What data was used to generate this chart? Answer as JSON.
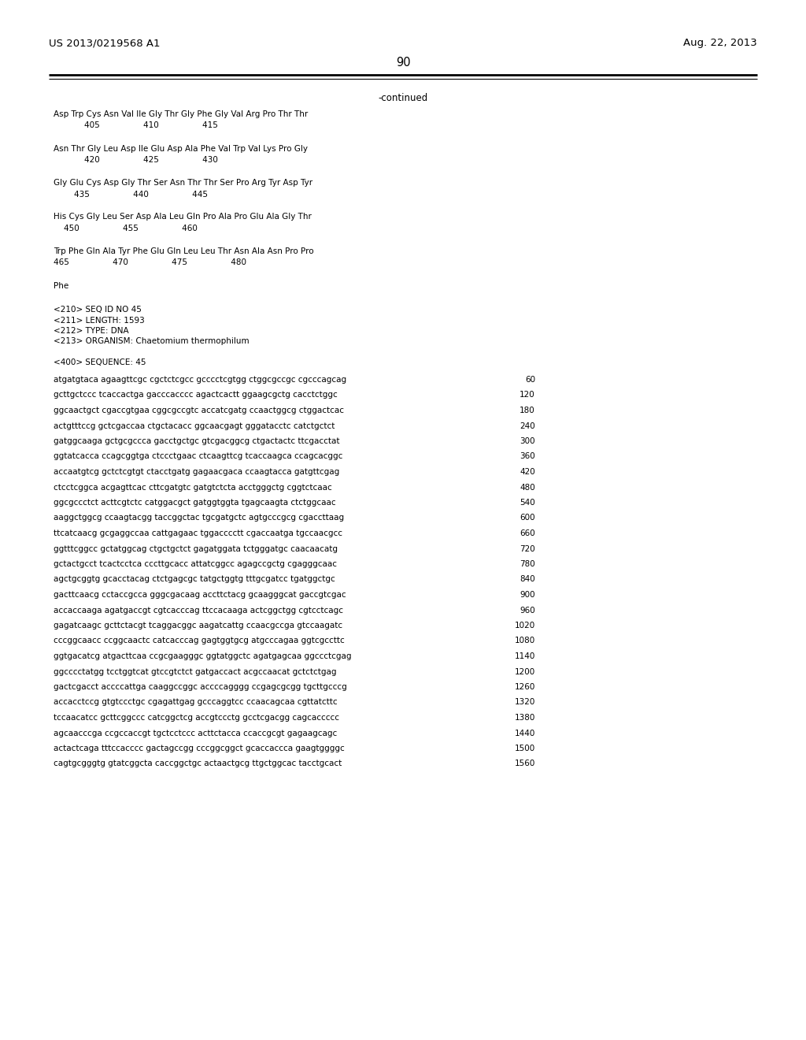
{
  "header_left": "US 2013/0219568 A1",
  "header_right": "Aug. 22, 2013",
  "page_number": "90",
  "continued_label": "-continued",
  "background_color": "#ffffff",
  "text_color": "#000000",
  "font_size_header": 9.5,
  "font_size_page": 10.5,
  "font_size_continued": 8.5,
  "font_size_mono": 7.5,
  "amino_acid_lines": [
    "Asp Trp Cys Asn Val Ile Gly Thr Gly Phe Gly Val Arg Pro Thr Thr",
    "            405                 410                 415",
    "",
    "Asn Thr Gly Leu Asp Ile Glu Asp Ala Phe Val Trp Val Lys Pro Gly",
    "            420                 425                 430",
    "",
    "Gly Glu Cys Asp Gly Thr Ser Asn Thr Thr Ser Pro Arg Tyr Asp Tyr",
    "        435                 440                 445",
    "",
    "His Cys Gly Leu Ser Asp Ala Leu Gln Pro Ala Pro Glu Ala Gly Thr",
    "    450                 455                 460",
    "",
    "Trp Phe Gln Ala Tyr Phe Glu Gln Leu Leu Thr Asn Ala Asn Pro Pro",
    "465                 470                 475                 480",
    "",
    "Phe"
  ],
  "metadata_lines": [
    "<210> SEQ ID NO 45",
    "<211> LENGTH: 1593",
    "<212> TYPE: DNA",
    "<213> ORGANISM: Chaetomium thermophilum"
  ],
  "sequence_header": "<400> SEQUENCE: 45",
  "dna_lines": [
    [
      "atgatgtaca agaagttcgc cgctctcgcc gcccctcgtgg ctggcgccgc cgcccagcag",
      "60"
    ],
    [
      "gcttgctccc tcaccactga gacccacccc agactcactt ggaagcgctg cacctctggc",
      "120"
    ],
    [
      "ggcaactgct cgaccgtgaa cggcgccgtc accatcgatg ccaactggcg ctggactcac",
      "180"
    ],
    [
      "actgtttccg gctcgaccaa ctgctacacc ggcaacgagt gggatacctc catctgctct",
      "240"
    ],
    [
      "gatggcaaga gctgcgccca gacctgctgc gtcgacggcg ctgactactc ttcgacctat",
      "300"
    ],
    [
      "ggtatcacca ccagcggtga ctccctgaac ctcaagttcg tcaccaagca ccagcacggc",
      "360"
    ],
    [
      "accaatgtcg gctctcgtgt ctacctgatg gagaacgaca ccaagtacca gatgttcgag",
      "420"
    ],
    [
      "ctcctcggca acgagttcac cttcgatgtc gatgtctcta acctgggctg cggtctcaac",
      "480"
    ],
    [
      "ggcgccctct acttcgtctc catggacgct gatggtggta tgagcaagta ctctggcaac",
      "540"
    ],
    [
      "aaggctggcg ccaagtacgg taccggctac tgcgatgctc agtgcccgcg cgaccttaag",
      "600"
    ],
    [
      "ttcatcaacg gcgaggccaa cattgagaac tggacccctt cgaccaatga tgccaacgcc",
      "660"
    ],
    [
      "ggtttcggcc gctatggcag ctgctgctct gagatggata tctgggatgc caacaacatg",
      "720"
    ],
    [
      "gctactgcct tcactcctca cccttgcacc attatcggcc agagccgctg cgagggcaac",
      "780"
    ],
    [
      "agctgcggtg gcacctacag ctctgagcgc tatgctggtg tttgcgatcc tgatggctgc",
      "840"
    ],
    [
      "gacttcaacg cctaccgcca gggcgacaag accttctacg gcaagggcat gaccgtcgac",
      "900"
    ],
    [
      "accaccaaga agatgaccgt cgtcacccag ttccacaaga actcggctgg cgtcctcagc",
      "960"
    ],
    [
      "gagatcaagc gcttctacgt tcaggacggc aagatcattg ccaacgccga gtccaagatc",
      "1020"
    ],
    [
      "cccggcaacc ccggcaactc catcacccag gagtggtgcg atgcccagaa ggtcgccttc",
      "1080"
    ],
    [
      "ggtgacatcg atgacttcaa ccgcgaagggc ggtatggctc agatgagcaa ggccctcgag",
      "1140"
    ],
    [
      "ggcccctatgg tcctggtcat gtccgtctct gatgaccact acgccaacat gctctctgag",
      "1200"
    ],
    [
      "gactcgacct accccattga caaggccggc accccagggg ccgagcgcgg tgcttgcccg",
      "1260"
    ],
    [
      "accacctccg gtgtccctgc cgagattgag gcccaggtcc ccaacagcaa cgttatcttc",
      "1320"
    ],
    [
      "tccaacatcc gcttcggccc catcggctcg accgtccctg gcctcgacgg cagcaccccc",
      "1380"
    ],
    [
      "agcaacccga ccgccaccgt tgctcctccc acttctacca ccaccgcgt gagaagcagc",
      "1440"
    ],
    [
      "actactcaga tttccacccc gactagccgg cccggcggct gcaccaccca gaagtggggc",
      "1500"
    ],
    [
      "cagtgcgggtg gtatcggcta caccggctgc actaactgcg ttgctggcac tacctgcact",
      "1560"
    ]
  ]
}
